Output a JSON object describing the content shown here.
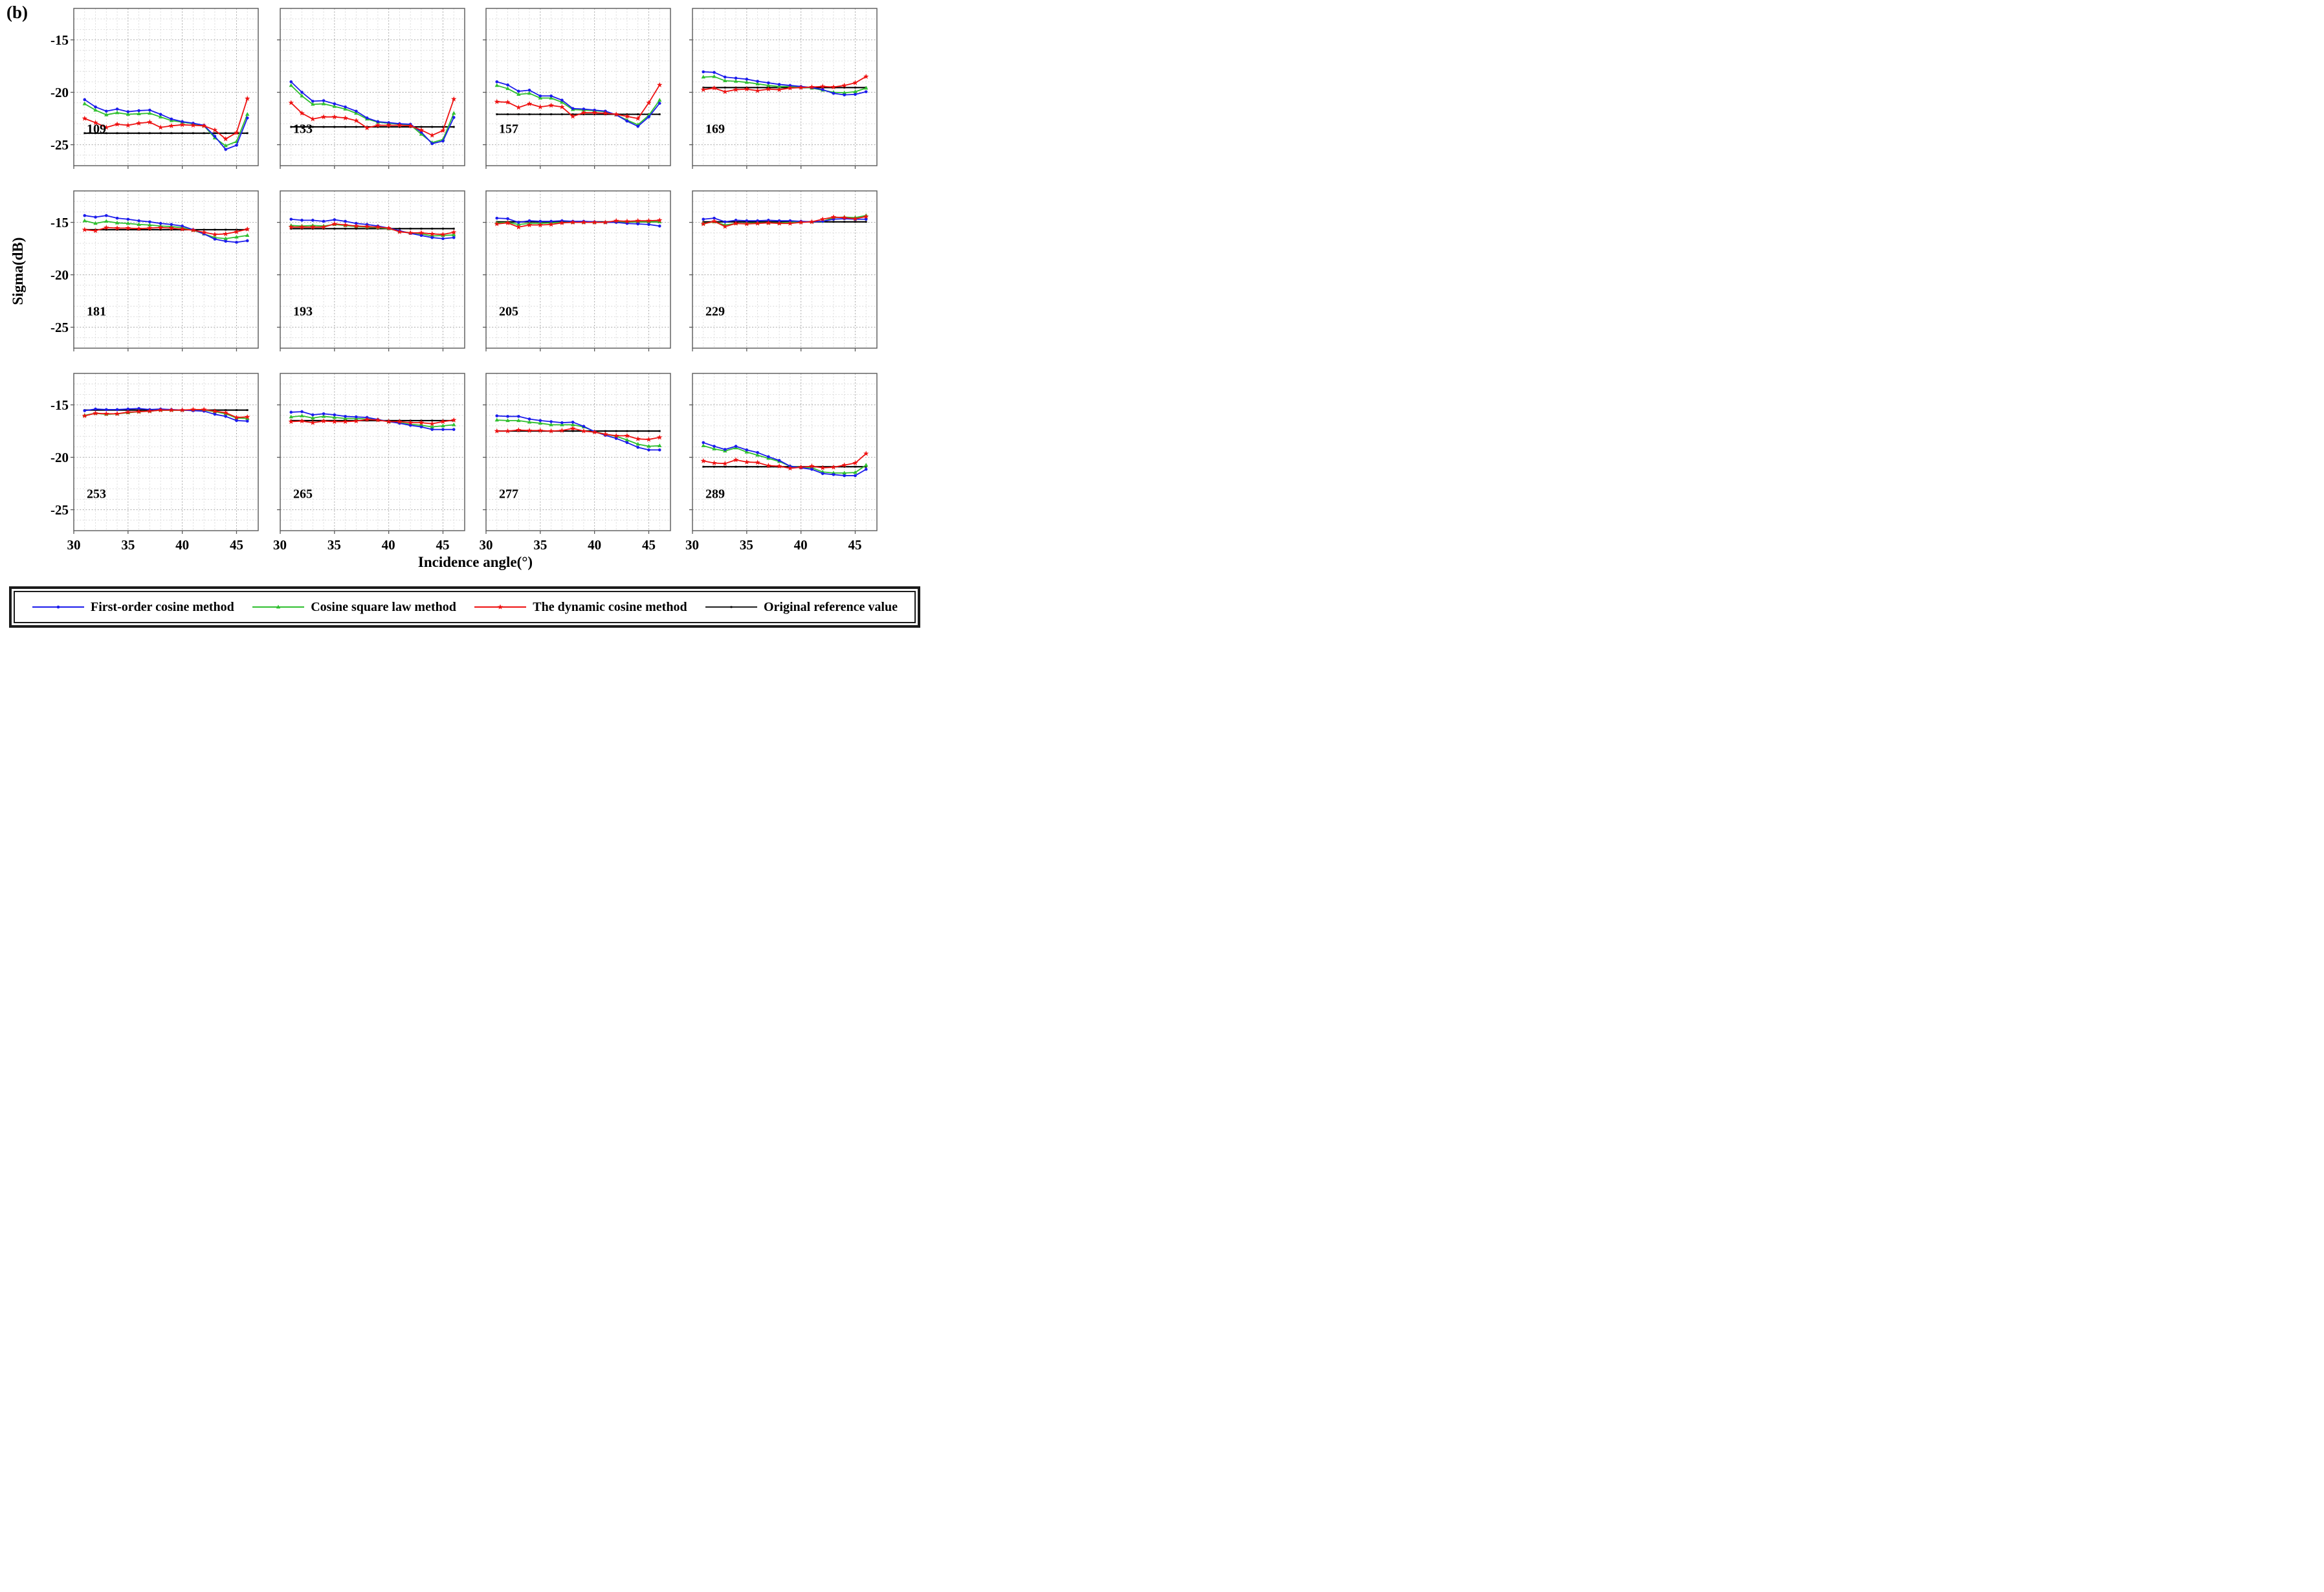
{
  "figure_label": "(b)",
  "colors": {
    "blue": "#1b1bec",
    "green": "#2fbf2f",
    "red": "#ee1111",
    "black": "#000000",
    "grid_minor": "#d4d4d4",
    "grid_major": "#a8a8a8",
    "axis_box": "#595959"
  },
  "legend": [
    {
      "label": "First-order cosine method",
      "series": "blue",
      "marker": "circle"
    },
    {
      "label": "Cosine square law method",
      "series": "green",
      "marker": "triangle"
    },
    {
      "label": "The dynamic cosine method",
      "series": "red",
      "marker": "star"
    },
    {
      "label": "Original reference value",
      "series": "black",
      "marker": "dot"
    }
  ],
  "chart_data": {
    "type": "line",
    "title": "",
    "x_label": "Incidence angle(°)",
    "y_label": "Sigma(dB)",
    "x_ticks": [
      30,
      35,
      40,
      45
    ],
    "y_ticks": [
      -15,
      -20,
      -25
    ],
    "x_tick_labels": [
      "30",
      "35",
      "40",
      "45"
    ],
    "y_tick_labels": [
      "-15",
      "-20",
      "-25"
    ],
    "x_range": [
      30,
      47
    ],
    "y_range": [
      -27,
      -12
    ],
    "grid": "dashed minor grid every 1 unit, major every 5",
    "legend_position": "bottom",
    "series_names": [
      "First-order cosine method",
      "Cosine square law method",
      "The dynamic cosine method",
      "Original reference value"
    ],
    "x": [
      31,
      32,
      33,
      34,
      35,
      36,
      37,
      38,
      39,
      40,
      41,
      42,
      43,
      44,
      45,
      46
    ],
    "panels": [
      {
        "label": "109",
        "reference": -23.9,
        "first_order": [
          -20.7,
          -21.4,
          -21.8,
          -21.6,
          -21.85,
          -21.75,
          -21.7,
          -22.1,
          -22.55,
          -22.8,
          -22.95,
          -23.15,
          -24.2,
          -25.45,
          -25.05,
          -22.45
        ],
        "cosine_square": [
          -21.1,
          -21.7,
          -22.15,
          -21.95,
          -22.1,
          -22.05,
          -22.0,
          -22.35,
          -22.7,
          -22.85,
          -23.0,
          -23.2,
          -24.35,
          -25.1,
          -24.7,
          -22.1
        ],
        "dynamic_cosine": [
          -22.5,
          -22.9,
          -23.35,
          -23.05,
          -23.15,
          -22.95,
          -22.85,
          -23.35,
          -23.2,
          -23.1,
          -23.15,
          -23.2,
          -23.6,
          -24.45,
          -23.85,
          -20.6
        ]
      },
      {
        "label": "133",
        "reference": -23.3,
        "first_order": [
          -19.0,
          -20.0,
          -20.85,
          -20.8,
          -21.1,
          -21.4,
          -21.8,
          -22.45,
          -22.8,
          -22.9,
          -23.0,
          -23.05,
          -23.8,
          -24.9,
          -24.65,
          -22.4
        ],
        "cosine_square": [
          -19.35,
          -20.35,
          -21.15,
          -21.1,
          -21.35,
          -21.6,
          -22.0,
          -22.55,
          -22.85,
          -22.95,
          -23.05,
          -23.1,
          -24.0,
          -24.8,
          -24.5,
          -22.0
        ],
        "dynamic_cosine": [
          -21.0,
          -22.0,
          -22.55,
          -22.35,
          -22.35,
          -22.45,
          -22.7,
          -23.4,
          -23.15,
          -23.15,
          -23.15,
          -23.2,
          -23.6,
          -24.1,
          -23.65,
          -20.65
        ]
      },
      {
        "label": "157",
        "reference": -22.1,
        "first_order": [
          -19.0,
          -19.3,
          -19.9,
          -19.8,
          -20.35,
          -20.35,
          -20.75,
          -21.55,
          -21.6,
          -21.7,
          -21.8,
          -22.15,
          -22.75,
          -23.25,
          -22.35,
          -21.05
        ],
        "cosine_square": [
          -19.35,
          -19.65,
          -20.2,
          -20.1,
          -20.55,
          -20.55,
          -20.95,
          -21.65,
          -21.7,
          -21.75,
          -21.85,
          -22.15,
          -22.65,
          -23.1,
          -22.2,
          -20.75
        ],
        "dynamic_cosine": [
          -20.9,
          -20.95,
          -21.45,
          -21.1,
          -21.4,
          -21.25,
          -21.4,
          -22.3,
          -21.95,
          -21.95,
          -22.0,
          -22.1,
          -22.3,
          -22.5,
          -21.0,
          -19.3
        ]
      },
      {
        "label": "169",
        "reference": -19.55,
        "first_order": [
          -18.05,
          -18.1,
          -18.55,
          -18.65,
          -18.75,
          -18.95,
          -19.1,
          -19.25,
          -19.35,
          -19.45,
          -19.55,
          -19.75,
          -20.1,
          -20.25,
          -20.2,
          -19.95
        ],
        "cosine_square": [
          -18.55,
          -18.5,
          -18.9,
          -18.95,
          -19.05,
          -19.2,
          -19.35,
          -19.45,
          -19.45,
          -19.5,
          -19.6,
          -19.8,
          -20.0,
          -20.05,
          -19.95,
          -19.6
        ],
        "dynamic_cosine": [
          -19.75,
          -19.6,
          -19.95,
          -19.75,
          -19.7,
          -19.85,
          -19.7,
          -19.75,
          -19.6,
          -19.55,
          -19.5,
          -19.45,
          -19.5,
          -19.35,
          -19.1,
          -18.5
        ]
      },
      {
        "label": "181",
        "reference": -15.7,
        "first_order": [
          -14.35,
          -14.5,
          -14.35,
          -14.6,
          -14.7,
          -14.85,
          -14.95,
          -15.1,
          -15.2,
          -15.35,
          -15.7,
          -16.1,
          -16.6,
          -16.8,
          -16.9,
          -16.75
        ],
        "cosine_square": [
          -14.85,
          -15.1,
          -14.9,
          -15.05,
          -15.1,
          -15.2,
          -15.25,
          -15.35,
          -15.4,
          -15.5,
          -15.75,
          -16.1,
          -16.45,
          -16.55,
          -16.4,
          -16.25
        ],
        "dynamic_cosine": [
          -15.7,
          -15.8,
          -15.5,
          -15.55,
          -15.55,
          -15.6,
          -15.55,
          -15.5,
          -15.55,
          -15.65,
          -15.75,
          -15.95,
          -16.15,
          -16.1,
          -15.9,
          -15.65
        ]
      },
      {
        "label": "193",
        "reference": -15.6,
        "first_order": [
          -14.7,
          -14.8,
          -14.8,
          -14.9,
          -14.75,
          -14.9,
          -15.1,
          -15.2,
          -15.35,
          -15.55,
          -15.8,
          -16.05,
          -16.25,
          -16.45,
          -16.55,
          -16.45
        ],
        "cosine_square": [
          -15.3,
          -15.35,
          -15.3,
          -15.35,
          -15.2,
          -15.3,
          -15.4,
          -15.45,
          -15.5,
          -15.6,
          -15.85,
          -16.0,
          -16.1,
          -16.3,
          -16.25,
          -16.2
        ],
        "dynamic_cosine": [
          -15.45,
          -15.45,
          -15.45,
          -15.45,
          -15.15,
          -15.25,
          -15.35,
          -15.4,
          -15.45,
          -15.55,
          -15.9,
          -16.0,
          -16.0,
          -16.1,
          -16.15,
          -15.95
        ]
      },
      {
        "label": "205",
        "reference": -14.95,
        "first_order": [
          -14.6,
          -14.65,
          -15.0,
          -14.85,
          -14.9,
          -14.9,
          -14.85,
          -14.9,
          -14.9,
          -14.95,
          -15.0,
          -15.0,
          -15.1,
          -15.15,
          -15.2,
          -15.35
        ],
        "cosine_square": [
          -15.05,
          -15.0,
          -15.2,
          -15.1,
          -15.1,
          -15.05,
          -15.0,
          -15.0,
          -15.0,
          -15.0,
          -15.0,
          -14.95,
          -14.95,
          -14.95,
          -14.95,
          -14.95
        ],
        "dynamic_cosine": [
          -15.15,
          -15.05,
          -15.45,
          -15.25,
          -15.25,
          -15.2,
          -15.05,
          -15.0,
          -15.0,
          -15.0,
          -15.0,
          -14.85,
          -14.9,
          -14.85,
          -14.85,
          -14.8
        ]
      },
      {
        "label": "229",
        "reference": -14.95,
        "first_order": [
          -14.7,
          -14.6,
          -14.95,
          -14.8,
          -14.85,
          -14.85,
          -14.8,
          -14.85,
          -14.85,
          -14.9,
          -14.95,
          -14.9,
          -14.7,
          -14.65,
          -14.7,
          -14.7
        ],
        "cosine_square": [
          -15.1,
          -14.95,
          -15.25,
          -15.1,
          -15.1,
          -15.05,
          -15.05,
          -15.05,
          -15.0,
          -14.95,
          -14.95,
          -14.9,
          -14.55,
          -14.5,
          -14.55,
          -14.35
        ],
        "dynamic_cosine": [
          -15.15,
          -14.9,
          -15.4,
          -15.1,
          -15.15,
          -15.1,
          -15.05,
          -15.1,
          -15.1,
          -15.0,
          -14.95,
          -14.7,
          -14.5,
          -14.55,
          -14.65,
          -14.45
        ]
      },
      {
        "label": "253",
        "reference": -15.5,
        "first_order": [
          -15.55,
          -15.4,
          -15.45,
          -15.45,
          -15.4,
          -15.35,
          -15.45,
          -15.4,
          -15.45,
          -15.5,
          -15.55,
          -15.6,
          -15.9,
          -16.1,
          -16.5,
          -16.55
        ],
        "cosine_square": [
          -16.0,
          -15.8,
          -15.9,
          -15.85,
          -15.75,
          -15.65,
          -15.6,
          -15.5,
          -15.5,
          -15.5,
          -15.5,
          -15.5,
          -15.65,
          -15.85,
          -16.25,
          -16.3
        ],
        "dynamic_cosine": [
          -16.05,
          -15.8,
          -15.85,
          -15.85,
          -15.7,
          -15.65,
          -15.6,
          -15.5,
          -15.5,
          -15.5,
          -15.45,
          -15.45,
          -15.6,
          -15.75,
          -16.2,
          -16.15
        ]
      },
      {
        "label": "265",
        "reference": -16.5,
        "first_order": [
          -15.7,
          -15.65,
          -15.95,
          -15.85,
          -15.95,
          -16.1,
          -16.15,
          -16.2,
          -16.4,
          -16.6,
          -16.75,
          -16.95,
          -17.1,
          -17.35,
          -17.35,
          -17.35
        ],
        "cosine_square": [
          -16.15,
          -16.05,
          -16.25,
          -16.1,
          -16.2,
          -16.3,
          -16.3,
          -16.35,
          -16.4,
          -16.6,
          -16.7,
          -16.85,
          -16.95,
          -17.1,
          -17.0,
          -16.9
        ],
        "dynamic_cosine": [
          -16.6,
          -16.55,
          -16.7,
          -16.55,
          -16.6,
          -16.6,
          -16.55,
          -16.4,
          -16.45,
          -16.6,
          -16.6,
          -16.7,
          -16.7,
          -16.8,
          -16.6,
          -16.45
        ]
      },
      {
        "label": "277",
        "reference": -17.5,
        "first_order": [
          -16.05,
          -16.1,
          -16.1,
          -16.35,
          -16.5,
          -16.6,
          -16.7,
          -16.65,
          -17.05,
          -17.55,
          -17.9,
          -18.2,
          -18.6,
          -19.05,
          -19.3,
          -19.3
        ],
        "cosine_square": [
          -16.45,
          -16.5,
          -16.5,
          -16.65,
          -16.75,
          -16.9,
          -16.9,
          -16.9,
          -17.1,
          -17.55,
          -17.8,
          -18.0,
          -18.35,
          -18.75,
          -18.95,
          -18.9
        ],
        "dynamic_cosine": [
          -17.5,
          -17.5,
          -17.4,
          -17.45,
          -17.45,
          -17.5,
          -17.45,
          -17.25,
          -17.5,
          -17.6,
          -17.8,
          -17.95,
          -17.95,
          -18.25,
          -18.3,
          -18.1
        ]
      },
      {
        "label": "289",
        "reference": -20.9,
        "first_order": [
          -18.6,
          -18.95,
          -19.25,
          -18.95,
          -19.3,
          -19.55,
          -19.95,
          -20.3,
          -20.85,
          -21.0,
          -21.15,
          -21.55,
          -21.65,
          -21.75,
          -21.75,
          -21.15
        ],
        "cosine_square": [
          -18.9,
          -19.2,
          -19.4,
          -19.1,
          -19.5,
          -19.8,
          -20.1,
          -20.4,
          -20.85,
          -20.95,
          -21.0,
          -21.4,
          -21.5,
          -21.5,
          -21.45,
          -20.75
        ],
        "dynamic_cosine": [
          -20.35,
          -20.55,
          -20.6,
          -20.25,
          -20.45,
          -20.5,
          -20.8,
          -20.85,
          -21.05,
          -20.95,
          -20.85,
          -21.0,
          -20.95,
          -20.75,
          -20.55,
          -19.65
        ]
      }
    ]
  }
}
